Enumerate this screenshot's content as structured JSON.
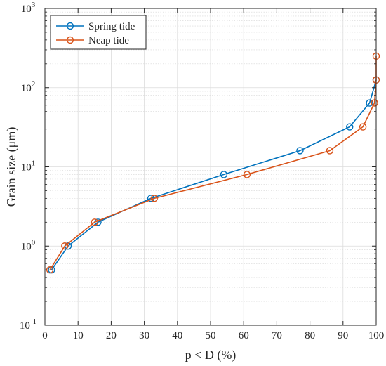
{
  "chart_data": {
    "type": "line",
    "xlabel": "p < D (%)",
    "ylabel": "Grain size (μm)",
    "xlim": [
      0,
      100
    ],
    "ylim": [
      0.1,
      1000
    ],
    "yscale": "log",
    "grid": true,
    "minor_grid": true,
    "legend_position": "top-left",
    "x_ticks": [
      0,
      10,
      20,
      30,
      40,
      50,
      60,
      70,
      80,
      90,
      100
    ],
    "x_tick_labels": [
      "0",
      "10",
      "20",
      "30",
      "40",
      "50",
      "60",
      "70",
      "80",
      "90",
      "100"
    ],
    "y_ticks": [
      0.1,
      1,
      10,
      100,
      1000
    ],
    "y_tick_labels": [
      {
        "base": "10",
        "exp": "-1"
      },
      {
        "base": "10",
        "exp": "0"
      },
      {
        "base": "10",
        "exp": "1"
      },
      {
        "base": "10",
        "exp": "2"
      },
      {
        "base": "10",
        "exp": "3"
      }
    ],
    "series": [
      {
        "name": "Spring tide",
        "color": "#0072BD",
        "marker": "circle",
        "x": [
          2,
          7,
          16,
          32,
          54,
          77,
          92,
          98,
          100
        ],
        "y": [
          0.5,
          1,
          2,
          4,
          8,
          16,
          32,
          64,
          125
        ]
      },
      {
        "name": "Neap tide",
        "color": "#D95319",
        "marker": "circle",
        "x": [
          1.5,
          6,
          15,
          33,
          61,
          86,
          96,
          99.5,
          100,
          100
        ],
        "y": [
          0.5,
          1,
          2,
          4,
          8,
          16,
          32,
          64,
          125,
          250
        ]
      }
    ]
  }
}
